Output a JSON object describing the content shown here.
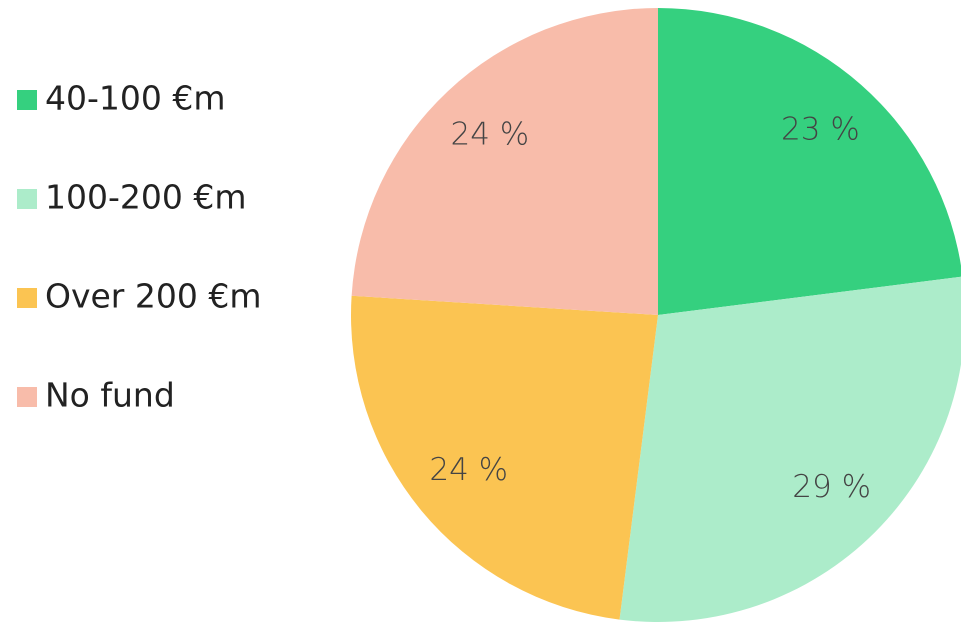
{
  "chart_data": {
    "type": "pie",
    "categories": [
      "40-100 €m",
      "100-200 €m",
      "Over 200 €m",
      "No fund"
    ],
    "values": [
      23,
      29,
      24,
      24
    ],
    "value_labels": [
      "23 %",
      "29 %",
      "24 %",
      "24 %"
    ],
    "colors": [
      "#35d07f",
      "#acecca",
      "#fbc452",
      "#f8bcaa"
    ],
    "legend": "left"
  }
}
